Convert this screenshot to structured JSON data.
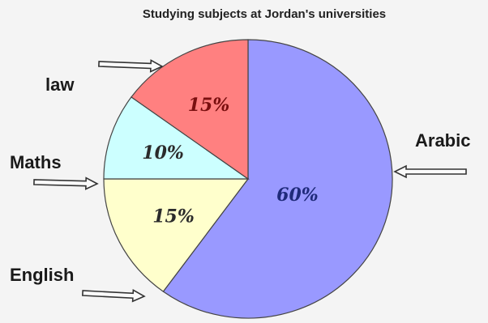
{
  "chart_data": {
    "type": "pie",
    "title": "Studying subjects at Jordan's universities",
    "slices": [
      {
        "label": "Arabic",
        "value": 60,
        "display": "60%",
        "color": "#9999ff",
        "text_color": "#1f2a7a"
      },
      {
        "label": "English",
        "value": 15,
        "display": "15%",
        "color": "#ffffcc",
        "text_color": "#2b2b2b"
      },
      {
        "label": "Maths",
        "value": 10,
        "display": "10%",
        "color": "#ccffff",
        "text_color": "#2b2b2b"
      },
      {
        "label": "law",
        "value": 15,
        "display": "15%",
        "color": "#ff8080",
        "text_color": "#7a0f0f"
      }
    ],
    "start_angle_deg": 0,
    "direction": "clockwise",
    "legend": "none",
    "label_style": "outside labels with arrows"
  }
}
